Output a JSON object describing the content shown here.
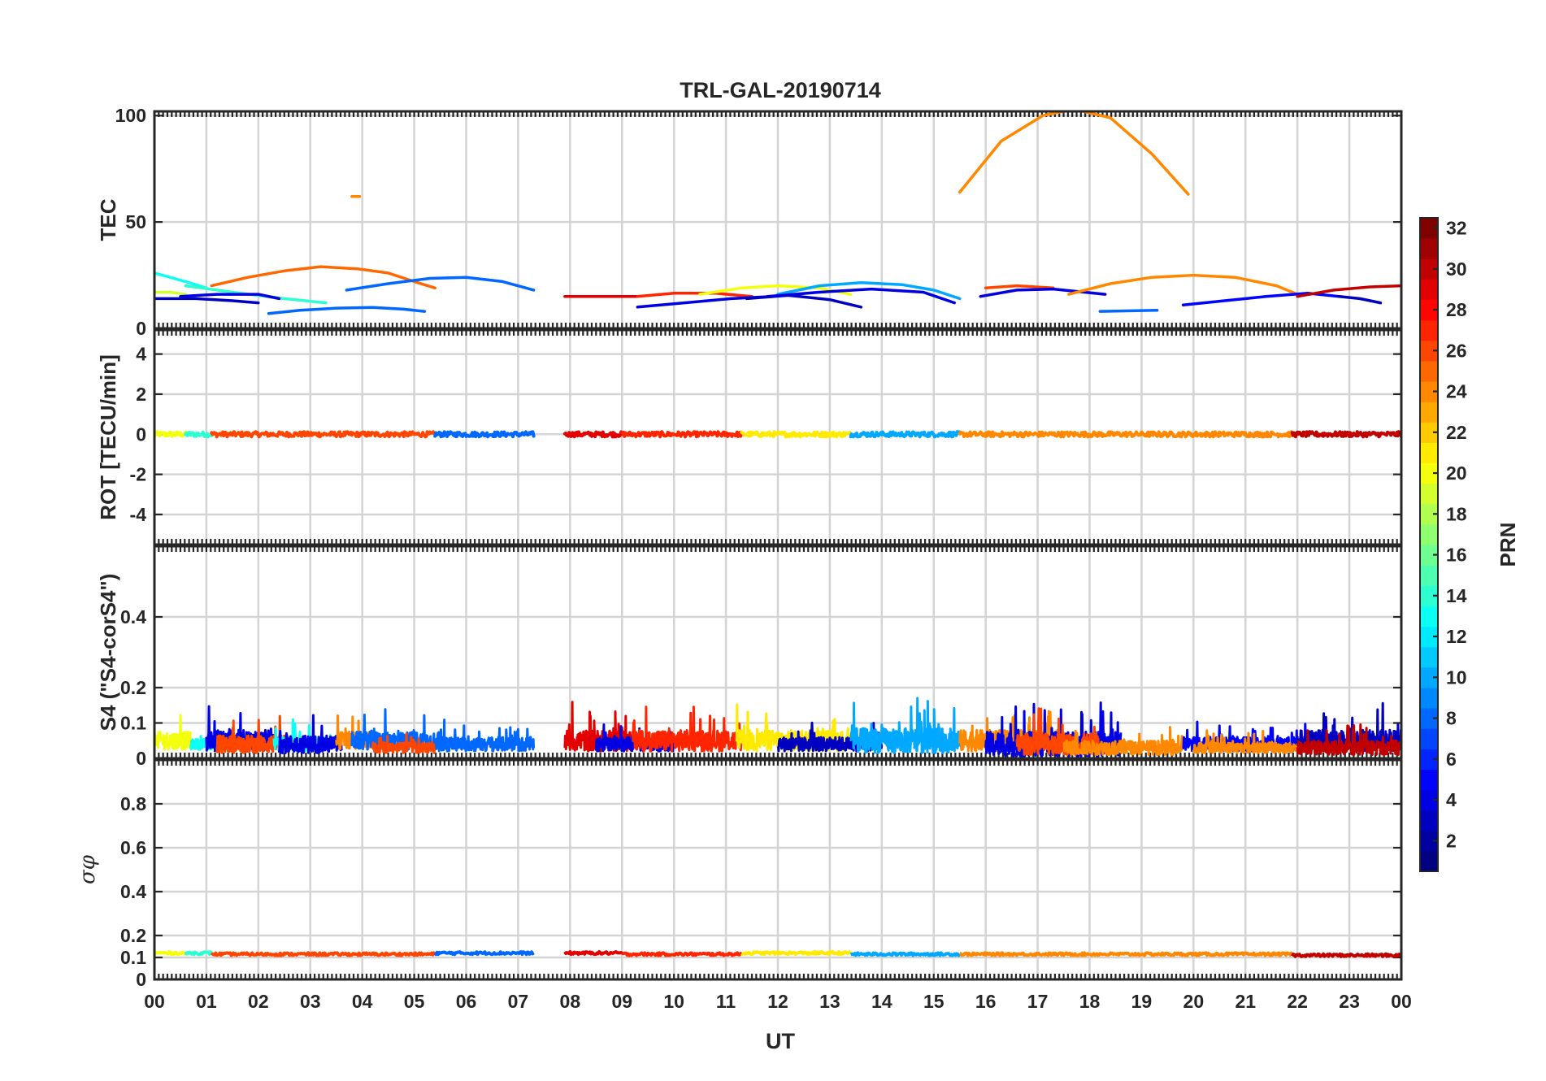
{
  "chart_data": {
    "title": "TRL-GAL-20190714",
    "type": "line",
    "xlabel": "UT",
    "x_ticks": [
      "00",
      "01",
      "02",
      "03",
      "04",
      "05",
      "06",
      "07",
      "08",
      "09",
      "10",
      "11",
      "12",
      "13",
      "14",
      "15",
      "16",
      "17",
      "18",
      "19",
      "20",
      "21",
      "22",
      "23",
      "00"
    ],
    "xlim": [
      0,
      24
    ],
    "colorbar": {
      "label": "PRN",
      "range": [
        1,
        32
      ],
      "ticks": [
        2,
        4,
        6,
        8,
        10,
        12,
        14,
        16,
        18,
        20,
        22,
        24,
        26,
        28,
        30,
        32
      ],
      "colormap": "jet"
    },
    "panels": [
      {
        "id": "tec",
        "ylabel": "TEC",
        "ylim": [
          0,
          102
        ],
        "yticks": [
          0,
          50,
          100
        ],
        "series": [
          {
            "prn": 13,
            "x": [
              0.0,
              0.3,
              0.6,
              1.0
            ],
            "y": [
              26,
              24,
              22,
              19
            ]
          },
          {
            "prn": 14,
            "x": [
              0.6,
              1.5,
              2.5,
              3.3
            ],
            "y": [
              20,
              17,
              14,
              12
            ]
          },
          {
            "prn": 19,
            "x": [
              0.0,
              0.3,
              0.6
            ],
            "y": [
              17,
              17,
              16
            ]
          },
          {
            "prn": 3,
            "x": [
              0.0,
              0.8,
              1.5,
              2.0
            ],
            "y": [
              14,
              14,
              13,
              12
            ]
          },
          {
            "prn": 4,
            "x": [
              0.5,
              1.2,
              2.0,
              2.4
            ],
            "y": [
              15,
              16,
              16,
              14
            ]
          },
          {
            "prn": 25,
            "x": [
              1.1,
              1.8,
              2.5,
              3.2,
              3.9,
              4.5,
              5.0,
              5.4
            ],
            "y": [
              20,
              24,
              27,
              29,
              28,
              26,
              22,
              19
            ]
          },
          {
            "prn": 24,
            "x": [
              3.8,
              3.95
            ],
            "y": [
              62,
              62
            ]
          },
          {
            "prn": 8,
            "x": [
              2.2,
              2.8,
              3.5,
              4.2,
              4.8,
              5.2
            ],
            "y": [
              7,
              8.5,
              9.5,
              9.8,
              9,
              8
            ]
          },
          {
            "prn": 8,
            "x": [
              3.7,
              4.5,
              5.3,
              6.0,
              6.7,
              7.3
            ],
            "y": [
              18,
              21,
              23.5,
              24,
              22,
              18
            ]
          },
          {
            "prn": 29,
            "x": [
              7.9,
              8.5,
              9.3
            ],
            "y": [
              15,
              15,
              15
            ]
          },
          {
            "prn": 27,
            "x": [
              9.3,
              10.0,
              10.8,
              11.5
            ],
            "y": [
              15,
              16.5,
              16.5,
              15
            ]
          },
          {
            "prn": 4,
            "x": [
              9.3,
              10.2,
              11.1,
              11.9
            ],
            "y": [
              10,
              12,
              14,
              15
            ]
          },
          {
            "prn": 20,
            "x": [
              10.5,
              11.3,
              12.0,
              12.8,
              13.4
            ],
            "y": [
              16,
              19,
              20,
              19,
              16
            ]
          },
          {
            "prn": 3,
            "x": [
              11.4,
              12.2,
              13.0,
              13.6
            ],
            "y": [
              14,
              15.5,
              13.5,
              10
            ]
          },
          {
            "prn": 10,
            "x": [
              12.0,
              12.8,
              13.6,
              14.4,
              15.0,
              15.5
            ],
            "y": [
              16,
              20,
              21.5,
              20.5,
              18,
              14
            ]
          },
          {
            "prn": 4,
            "x": [
              11.8,
              12.8,
              13.8,
              14.8,
              15.4
            ],
            "y": [
              15,
              17,
              18.5,
              17,
              12
            ]
          },
          {
            "prn": 24,
            "x": [
              15.5,
              16.3,
              17.1,
              17.7,
              18.4,
              19.2,
              19.9
            ],
            "y": [
              64,
              88,
              100,
              103,
              99,
              82,
              63
            ]
          },
          {
            "prn": 26,
            "x": [
              16.0,
              16.6,
              17.3
            ],
            "y": [
              19,
              20,
              19
            ]
          },
          {
            "prn": 4,
            "x": [
              15.9,
              16.6,
              17.3,
              17.9,
              18.3
            ],
            "y": [
              15,
              18,
              18.5,
              17,
              16
            ]
          },
          {
            "prn": 24,
            "x": [
              17.6,
              18.4,
              19.2,
              20.0,
              20.8,
              21.6,
              22.0
            ],
            "y": [
              16,
              21,
              24,
              25,
              24,
              20,
              16
            ]
          },
          {
            "prn": 8,
            "x": [
              18.2,
              18.7,
              19.3
            ],
            "y": [
              8,
              8.2,
              8.5
            ]
          },
          {
            "prn": 5,
            "x": [
              19.8,
              20.6,
              21.4,
              22.2,
              22.8
            ],
            "y": [
              11,
              13,
              15,
              16.5,
              15
            ]
          },
          {
            "prn": 30,
            "x": [
              22.0,
              22.7,
              23.4,
              24.0
            ],
            "y": [
              15,
              18,
              19.5,
              20
            ]
          },
          {
            "prn": 3,
            "x": [
              22.8,
              23.2,
              23.6
            ],
            "y": [
              15,
              14,
              12
            ]
          }
        ]
      },
      {
        "id": "rot",
        "ylabel": "ROT [TECU/min]",
        "ylim": [
          -5.5,
          5.2
        ],
        "yticks": [
          -4,
          -2,
          0,
          2,
          4
        ],
        "series": [
          {
            "prn": 20,
            "x": [
              0.0,
              0.6
            ],
            "y": [
              0,
              0
            ]
          },
          {
            "prn": 14,
            "x": [
              0.6,
              1.1
            ],
            "y": [
              0,
              0
            ]
          },
          {
            "prn": 26,
            "x": [
              1.1,
              5.4
            ],
            "y": [
              0,
              0
            ]
          },
          {
            "prn": 8,
            "x": [
              5.4,
              7.3
            ],
            "y": [
              0,
              0
            ]
          },
          {
            "prn": 29,
            "x": [
              7.9,
              9.0
            ],
            "y": [
              0,
              0
            ]
          },
          {
            "prn": 27,
            "x": [
              9.0,
              11.3
            ],
            "y": [
              0,
              0
            ]
          },
          {
            "prn": 21,
            "x": [
              11.3,
              13.4
            ],
            "y": [
              0,
              0
            ]
          },
          {
            "prn": 10,
            "x": [
              13.4,
              15.5
            ],
            "y": [
              0,
              0
            ]
          },
          {
            "prn": 24,
            "x": [
              15.5,
              21.9
            ],
            "y": [
              0,
              0
            ]
          },
          {
            "prn": 30,
            "x": [
              21.9,
              24.0
            ],
            "y": [
              0,
              0
            ]
          }
        ]
      },
      {
        "id": "s4",
        "ylabel": "S4 (\"S4-corS4\")",
        "ylim": [
          0,
          0.6
        ],
        "yticks": [
          0,
          0.1,
          0.2,
          0.4
        ],
        "series": [
          {
            "prn": 20,
            "x": [
              0.0,
              0.7
            ],
            "level": 0.05,
            "amp": 0.05
          },
          {
            "prn": 13,
            "x": [
              0.7,
              1.1
            ],
            "level": 0.04,
            "amp": 0.03
          },
          {
            "prn": 4,
            "x": [
              1.0,
              2.3
            ],
            "level": 0.05,
            "amp": 0.06
          },
          {
            "prn": 26,
            "x": [
              1.2,
              2.6
            ],
            "level": 0.04,
            "amp": 0.05
          },
          {
            "prn": 13,
            "x": [
              2.3,
              3.4
            ],
            "level": 0.04,
            "amp": 0.04
          },
          {
            "prn": 4,
            "x": [
              2.4,
              3.6
            ],
            "level": 0.04,
            "amp": 0.05
          },
          {
            "prn": 24,
            "x": [
              3.5,
              4.2
            ],
            "level": 0.05,
            "amp": 0.05
          },
          {
            "prn": 8,
            "x": [
              3.8,
              5.4
            ],
            "level": 0.05,
            "amp": 0.05
          },
          {
            "prn": 26,
            "x": [
              4.2,
              5.4
            ],
            "level": 0.03,
            "amp": 0.03
          },
          {
            "prn": 8,
            "x": [
              5.4,
              7.3
            ],
            "level": 0.04,
            "amp": 0.04
          },
          {
            "prn": 29,
            "x": [
              7.9,
              9.2
            ],
            "level": 0.05,
            "amp": 0.06
          },
          {
            "prn": 4,
            "x": [
              8.5,
              10.0
            ],
            "level": 0.04,
            "amp": 0.04
          },
          {
            "prn": 27,
            "x": [
              9.2,
              11.3
            ],
            "level": 0.05,
            "amp": 0.06
          },
          {
            "prn": 21,
            "x": [
              11.2,
              13.4
            ],
            "level": 0.05,
            "amp": 0.06
          },
          {
            "prn": 3,
            "x": [
              12.0,
              14.0
            ],
            "level": 0.04,
            "amp": 0.04
          },
          {
            "prn": 10,
            "x": [
              13.4,
              15.5
            ],
            "level": 0.05,
            "amp": 0.07
          },
          {
            "prn": 24,
            "x": [
              15.5,
              17.5
            ],
            "level": 0.05,
            "amp": 0.06
          },
          {
            "prn": 4,
            "x": [
              16.0,
              18.6
            ],
            "level": 0.04,
            "amp": 0.07
          },
          {
            "prn": 26,
            "x": [
              16.6,
              18.2
            ],
            "level": 0.04,
            "amp": 0.06
          },
          {
            "prn": 24,
            "x": [
              17.5,
              19.8
            ],
            "level": 0.03,
            "amp": 0.04
          },
          {
            "prn": 5,
            "x": [
              19.8,
              22.2
            ],
            "level": 0.04,
            "amp": 0.04
          },
          {
            "prn": 24,
            "x": [
              20.0,
              22.0
            ],
            "level": 0.03,
            "amp": 0.03
          },
          {
            "prn": 3,
            "x": [
              22.0,
              24.0
            ],
            "level": 0.05,
            "amp": 0.06
          },
          {
            "prn": 30,
            "x": [
              22.0,
              24.0
            ],
            "level": 0.03,
            "amp": 0.04
          }
        ]
      },
      {
        "id": "sigma_phi",
        "ylabel": "σφ",
        "ylim": [
          0,
          1.0
        ],
        "yticks": [
          0,
          0.1,
          0.2,
          0.4,
          0.6,
          0.8
        ],
        "series": [
          {
            "prn": 20,
            "x": [
              0.0,
              0.6
            ],
            "level": 0.12
          },
          {
            "prn": 14,
            "x": [
              0.6,
              1.1
            ],
            "level": 0.12
          },
          {
            "prn": 26,
            "x": [
              1.1,
              5.4
            ],
            "level": 0.115
          },
          {
            "prn": 8,
            "x": [
              5.4,
              7.3
            ],
            "level": 0.12
          },
          {
            "prn": 29,
            "x": [
              7.9,
              9.0
            ],
            "level": 0.12
          },
          {
            "prn": 27,
            "x": [
              9.0,
              11.3
            ],
            "level": 0.115
          },
          {
            "prn": 21,
            "x": [
              11.3,
              13.4
            ],
            "level": 0.12
          },
          {
            "prn": 10,
            "x": [
              13.4,
              15.5
            ],
            "level": 0.115
          },
          {
            "prn": 24,
            "x": [
              15.5,
              21.9
            ],
            "level": 0.115
          },
          {
            "prn": 30,
            "x": [
              21.9,
              24.0
            ],
            "level": 0.11
          }
        ]
      }
    ]
  }
}
